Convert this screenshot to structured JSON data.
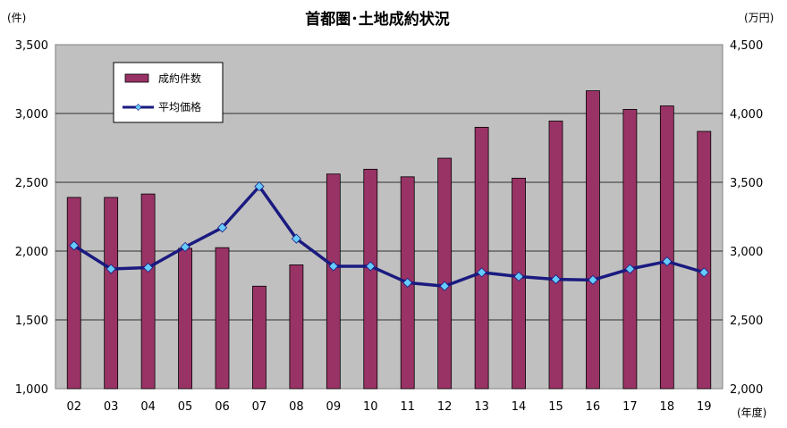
{
  "chart_data": {
    "type": "bar+line",
    "title": "首都圏･土地成約状況",
    "y_left_unit": "(件)",
    "y_right_unit": "(万円)",
    "x_unit": "(年度)",
    "categories": [
      "02",
      "03",
      "04",
      "05",
      "06",
      "07",
      "08",
      "09",
      "10",
      "11",
      "12",
      "13",
      "14",
      "15",
      "16",
      "17",
      "18",
      "19"
    ],
    "series": [
      {
        "name": "成約件数",
        "type": "bar",
        "axis": "left",
        "color": "#993366",
        "values": [
          2390,
          2390,
          2415,
          2020,
          2025,
          1745,
          1900,
          2560,
          2595,
          2540,
          2675,
          2900,
          2530,
          2945,
          3165,
          3030,
          3055,
          2870
        ]
      },
      {
        "name": "平均価格",
        "type": "line",
        "axis": "right",
        "color": "#1a1a80",
        "marker_color": "#66ccff",
        "values": [
          3040,
          2870,
          2880,
          3030,
          3170,
          3470,
          3090,
          2890,
          2890,
          2770,
          2745,
          2845,
          2815,
          2795,
          2790,
          2870,
          2925,
          2845
        ]
      }
    ],
    "y_left": {
      "min": 1000,
      "max": 3500,
      "ticks": [
        "1,000",
        "1,500",
        "2,000",
        "2,500",
        "3,000",
        "3,500"
      ]
    },
    "y_right": {
      "min": 2000,
      "max": 4500,
      "ticks": [
        "2,000",
        "2,500",
        "3,000",
        "3,500",
        "4,000",
        "4,500"
      ]
    },
    "grid": "horizontal",
    "legend_position": "top-left inside plot",
    "plot_background": "#c0c0c0"
  }
}
